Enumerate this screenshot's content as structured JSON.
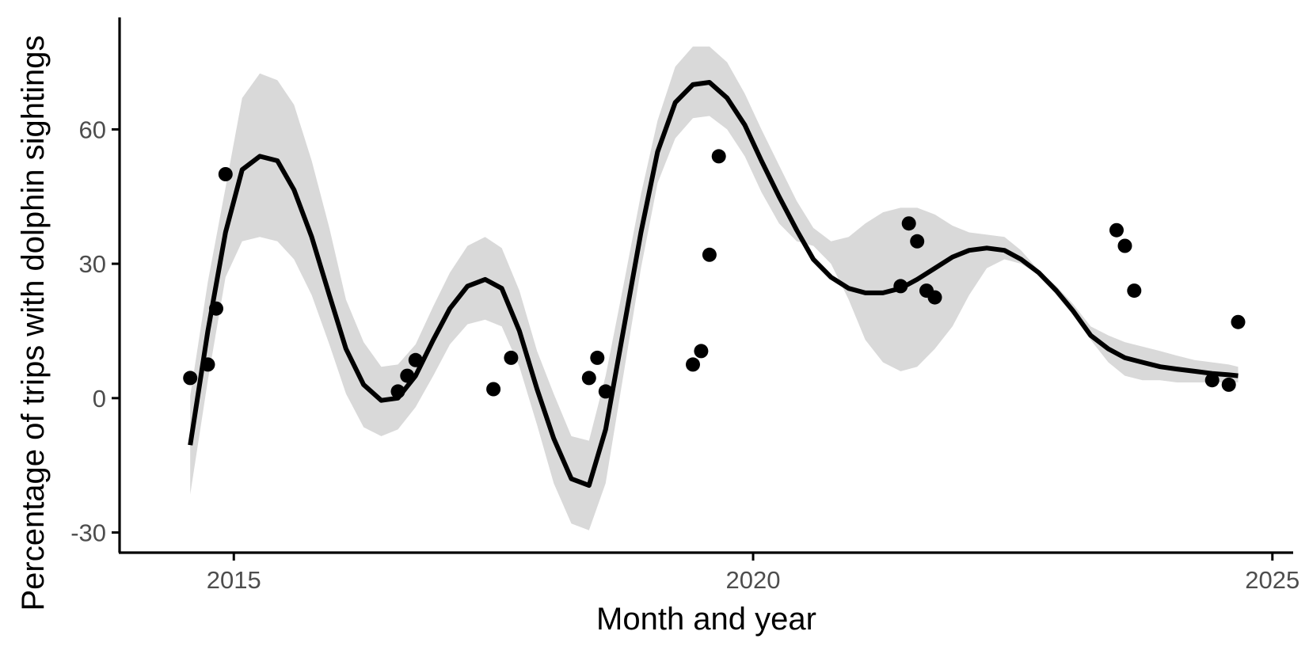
{
  "chart_data": {
    "type": "scatter",
    "title": "",
    "xlabel": "Month and year",
    "ylabel": "Percentage of trips with dolphin sightings",
    "xlim": [
      2013.9,
      2025.2
    ],
    "ylim": [
      -34.5,
      85
    ],
    "x_ticks": [
      2015,
      2020,
      2025
    ],
    "x_tick_labels": [
      "2015",
      "2020",
      "2025"
    ],
    "y_ticks": [
      -30,
      0,
      30,
      60
    ],
    "y_tick_labels": [
      "-30",
      "0",
      "30",
      "60"
    ],
    "grid": false,
    "legend": "none",
    "colors": {
      "points": "#000000",
      "smooth_line": "#000000",
      "confidence_band": "#d9d9d9",
      "tick_labels": "#4d4d4d"
    },
    "points": {
      "x": [
        2014.58,
        2014.75,
        2014.83,
        2014.92,
        2016.58,
        2016.67,
        2016.75,
        2017.5,
        2017.67,
        2018.42,
        2018.5,
        2018.58,
        2019.42,
        2019.5,
        2019.58,
        2019.67,
        2021.42,
        2021.5,
        2021.58,
        2021.67,
        2021.75,
        2023.5,
        2023.58,
        2023.67,
        2024.42,
        2024.58,
        2024.67
      ],
      "y": [
        4.5,
        7.5,
        20,
        50,
        1.5,
        5,
        8.5,
        2,
        9,
        4.5,
        9,
        1.5,
        7.5,
        10.5,
        32,
        54,
        25,
        39,
        35,
        24,
        22.5,
        37.5,
        34,
        24,
        4,
        3,
        17
      ]
    },
    "smooth": {
      "x": [
        2014.58,
        2014.75,
        2014.92,
        2015.08,
        2015.25,
        2015.42,
        2015.58,
        2015.75,
        2015.92,
        2016.08,
        2016.25,
        2016.42,
        2016.58,
        2016.75,
        2016.92,
        2017.08,
        2017.25,
        2017.42,
        2017.58,
        2017.75,
        2017.92,
        2018.08,
        2018.25,
        2018.42,
        2018.58,
        2018.75,
        2018.92,
        2019.08,
        2019.25,
        2019.42,
        2019.58,
        2019.75,
        2019.92,
        2020.08,
        2020.25,
        2020.42,
        2020.58,
        2020.75,
        2020.92,
        2021.08,
        2021.25,
        2021.42,
        2021.58,
        2021.75,
        2021.92,
        2022.08,
        2022.25,
        2022.42,
        2022.58,
        2022.75,
        2022.92,
        2023.08,
        2023.25,
        2023.42,
        2023.58,
        2023.75,
        2023.92,
        2024.08,
        2024.25,
        2024.42,
        2024.58,
        2024.67
      ],
      "y": [
        -10.5,
        15,
        37,
        51,
        54,
        53,
        46.5,
        36,
        23,
        11,
        3,
        -0.5,
        0,
        5,
        13,
        20,
        25,
        26.5,
        24.5,
        15,
        2,
        -9,
        -18,
        -19.5,
        -7,
        15,
        37,
        55,
        66,
        70,
        70.5,
        67,
        61,
        53,
        45,
        37.5,
        31,
        27,
        24.5,
        23.5,
        23.5,
        24.5,
        26.5,
        29,
        31.5,
        33,
        33.5,
        33,
        31,
        28,
        24,
        19.5,
        14,
        11,
        9,
        8,
        7,
        6.5,
        6,
        5.5,
        5.2,
        5
      ],
      "lower": [
        -21.5,
        4,
        27,
        35,
        36,
        35,
        31,
        23,
        12,
        1,
        -6.5,
        -8.5,
        -7,
        -2,
        5,
        12,
        16.5,
        17.5,
        16,
        7,
        -6,
        -19,
        -28,
        -29.5,
        -19,
        5,
        29,
        48,
        58,
        62.5,
        63,
        60,
        54,
        46,
        39,
        35,
        34,
        30,
        22,
        13,
        8,
        6,
        7,
        11,
        16,
        23,
        29,
        31,
        30,
        27.5,
        23,
        18.5,
        13,
        8,
        5,
        4,
        4,
        3.5,
        3.5,
        3.5,
        3.5,
        3.5
      ],
      "upper": [
        0.5,
        26,
        47,
        67,
        72.5,
        71,
        65.5,
        53,
        38,
        22,
        12.5,
        7,
        7.5,
        12,
        20.5,
        28,
        34,
        36,
        33.5,
        24,
        10.5,
        1,
        -8.5,
        -9.5,
        5,
        25,
        45.5,
        62,
        74,
        78.5,
        78.5,
        75,
        68,
        60,
        52,
        44,
        38,
        35,
        36,
        39,
        41.5,
        42.5,
        42.5,
        41,
        38.5,
        37,
        36.5,
        36,
        33,
        28.5,
        25,
        21,
        16,
        14,
        12.5,
        11.5,
        10.5,
        9.5,
        8.5,
        8,
        7.5,
        7
      ]
    }
  }
}
